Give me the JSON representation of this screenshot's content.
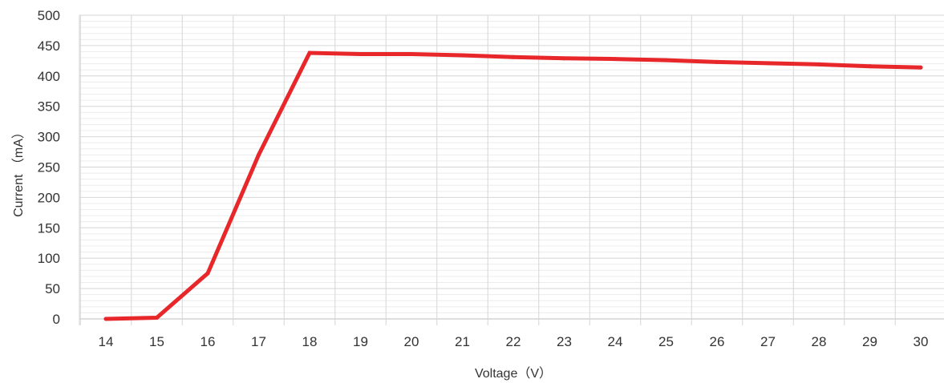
{
  "chart_data": {
    "type": "line",
    "xlabel": "Voltage（V）",
    "ylabel": "Current （mA）",
    "x": [
      14,
      15,
      16,
      17,
      18,
      19,
      20,
      21,
      22,
      23,
      24,
      25,
      26,
      27,
      28,
      29,
      30
    ],
    "series": [
      {
        "values": [
          0,
          2,
          75,
          270,
          438,
          436,
          436,
          434,
          431,
          429,
          428,
          426,
          423,
          421,
          419,
          416,
          414
        ],
        "color": "#e8272b"
      }
    ],
    "ylim": [
      0,
      500
    ],
    "yticks": [
      0,
      50,
      100,
      150,
      200,
      250,
      300,
      350,
      400,
      450,
      500
    ],
    "xticks": [
      14,
      15,
      16,
      17,
      18,
      19,
      20,
      21,
      22,
      23,
      24,
      25,
      26,
      27,
      28,
      29,
      30
    ],
    "grid": true,
    "legend": "none"
  }
}
